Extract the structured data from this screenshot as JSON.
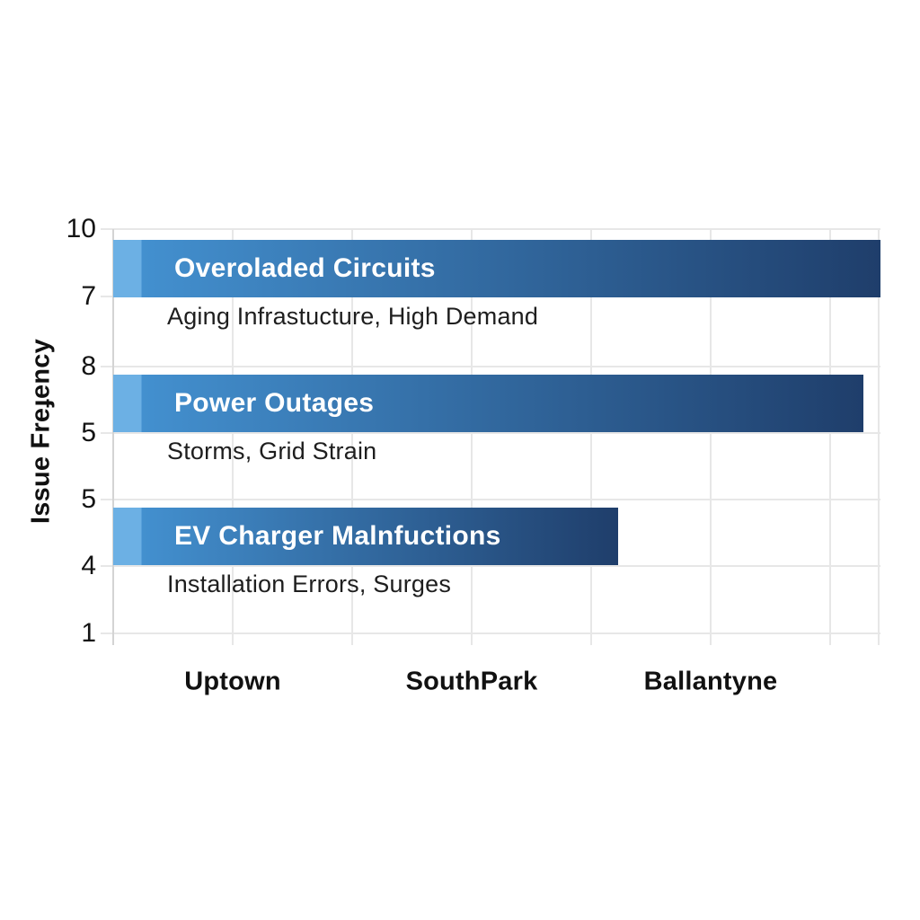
{
  "page": {
    "background": "#ffffff"
  },
  "chart_data": {
    "type": "bar",
    "orientation": "horizontal",
    "title": "",
    "ylabel": "Issue Freɟency",
    "categories": [
      "Overoladed Circuits",
      "Power Outages",
      "EV Charger Malnfuctions"
    ],
    "category_subtitles": [
      "Aging Infrastucture, High Demand",
      "Storms, Grid Strain",
      "Installation Errors, Surges"
    ],
    "values_pct_of_axis": [
      100,
      97.8,
      65.8
    ],
    "y_tick_labels": [
      "10",
      "7",
      "8",
      "5",
      "5",
      "4",
      "1"
    ],
    "x_tick_labels": [
      "Uptown",
      "SouthPark",
      "Ballantyne"
    ],
    "grid": true,
    "legend": false,
    "colors": {
      "bar_light_segment": "#6cb0e4",
      "bar_gradient_start": "#4390cf",
      "bar_gradient_end": "#1f3e6b",
      "bar_title_text": "#ffffff",
      "subtitle_text": "#1e1e1e",
      "axis_text": "#141414",
      "gridline": "#e7e7e7",
      "axis_line": "#d4d4d4"
    }
  }
}
